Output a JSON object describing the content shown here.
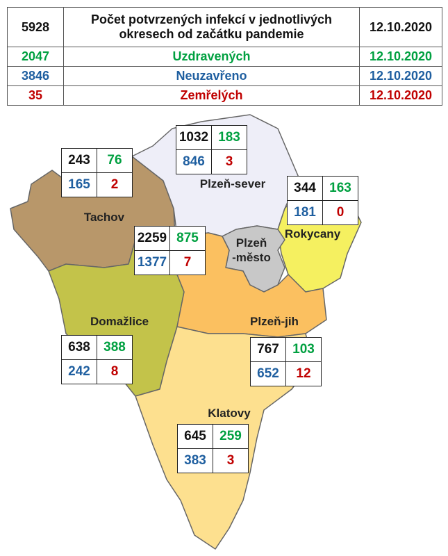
{
  "header": {
    "rows": [
      [
        "5928",
        "Počet potvrzených infekcí v jednotlivých okresech od začátku pandemie",
        "12.10.2020"
      ],
      [
        "2047",
        "Uzdravených",
        "12.10.2020"
      ],
      [
        "3846",
        "Neuzavřeno",
        "12.10.2020"
      ],
      [
        "35",
        "Zemřelých",
        "12.10.2020"
      ]
    ]
  },
  "districts": [
    {
      "label": [
        "Tachov"
      ],
      "confirmed": "243",
      "recovered": "76",
      "open": "165",
      "deaths": "2"
    },
    {
      "label": [
        "Plzeň-sever"
      ],
      "confirmed": "1032",
      "recovered": "183",
      "open": "846",
      "deaths": "3"
    },
    {
      "label": [
        "Rokycany"
      ],
      "confirmed": "344",
      "recovered": "163",
      "open": "181",
      "deaths": "0"
    },
    {
      "label": [
        "Plzeň",
        "-město"
      ],
      "confirmed": "2259",
      "recovered": "875",
      "open": "1377",
      "deaths": "7"
    },
    {
      "label": [
        "Domažlice"
      ],
      "confirmed": "638",
      "recovered": "388",
      "open": "242",
      "deaths": "8"
    },
    {
      "label": [
        "Plzeň-jih"
      ],
      "confirmed": "767",
      "recovered": "103",
      "open": "652",
      "deaths": "12"
    },
    {
      "label": [
        "Klatovy"
      ],
      "confirmed": "645",
      "recovered": "259",
      "open": "383",
      "deaths": "3"
    }
  ]
}
